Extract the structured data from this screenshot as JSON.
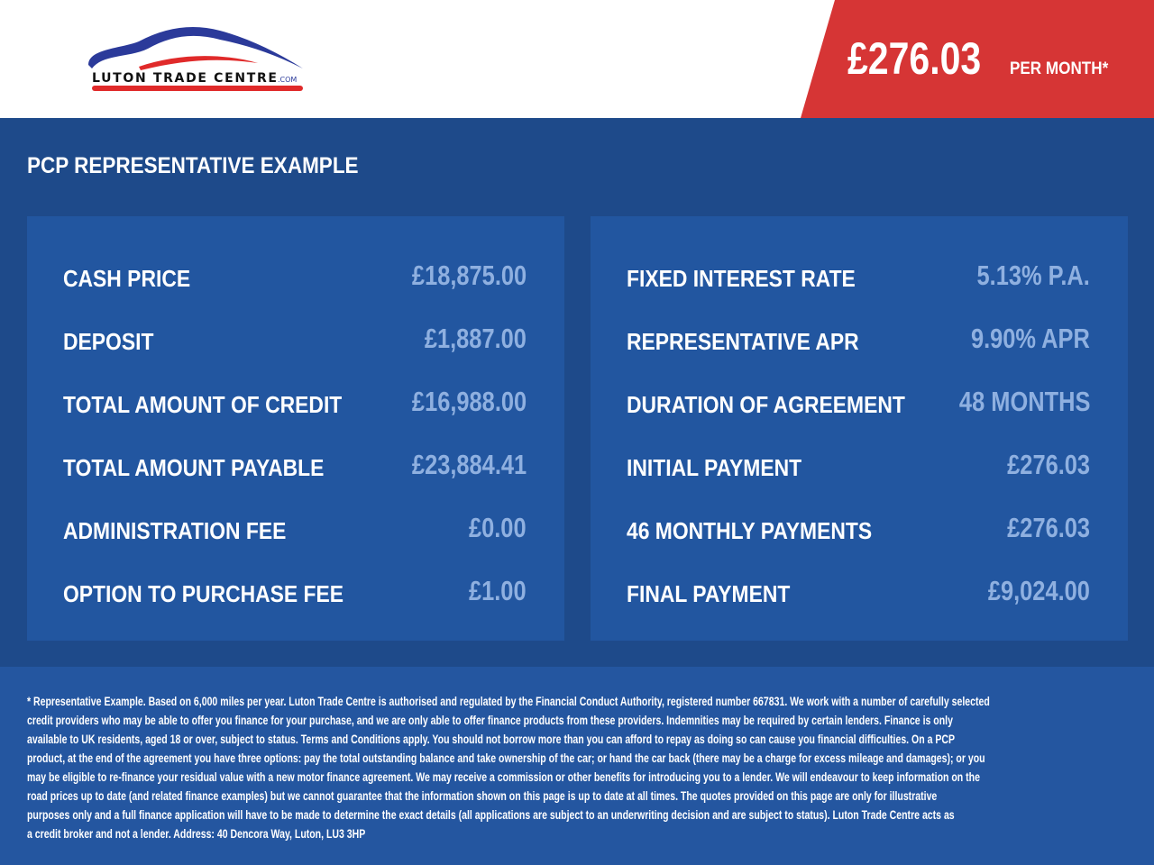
{
  "brand": {
    "logo_text": "LUTON TRADE CENTRE.COM",
    "colors": {
      "blue": "#2b3a9a",
      "red": "#e02a2a"
    }
  },
  "header": {
    "price": "£276.03",
    "per_month": "PER MONTH*"
  },
  "title": "PCP REPRESENTATIVE EXAMPLE",
  "left": [
    {
      "label": "CASH PRICE",
      "value": "£18,875.00"
    },
    {
      "label": "DEPOSIT",
      "value": "£1,887.00"
    },
    {
      "label": "TOTAL AMOUNT OF CREDIT",
      "value": "£16,988.00"
    },
    {
      "label": "TOTAL AMOUNT PAYABLE",
      "value": "£23,884.41"
    },
    {
      "label": "ADMINISTRATION FEE",
      "value": "£0.00"
    },
    {
      "label": "OPTION TO PURCHASE FEE",
      "value": "£1.00"
    }
  ],
  "right": [
    {
      "label": "FIXED INTEREST RATE",
      "value": "5.13% P.A."
    },
    {
      "label": "REPRESENTATIVE APR",
      "value": "9.90% APR"
    },
    {
      "label": "DURATION OF AGREEMENT",
      "value": "48 MONTHS"
    },
    {
      "label": "INITIAL PAYMENT",
      "value": "£276.03"
    },
    {
      "label": "46 MONTHLY PAYMENTS",
      "value": "£276.03"
    },
    {
      "label": "FINAL PAYMENT",
      "value": "£9,024.00"
    }
  ],
  "footer_lines": [
    "* Representative Example. Based on 6,000 miles per year. Luton Trade Centre is authorised and regulated by the Financial Conduct Authority, registered number 667831. We work with a number of carefully selected",
    "credit providers who may be able to offer you finance for your purchase, and we are only able to offer finance products from these providers. Indemnities may be required by certain lenders. Finance is only",
    "available to UK residents, aged 18 or over, subject to status. Terms and Conditions apply. You should not borrow more than you can afford to repay as doing so can cause you financial difficulties. On a PCP",
    "product, at the end of the agreement you have three options: pay the total outstanding balance and take ownership of the car; or hand the car back (there may be a charge for excess mileage and damages); or you",
    "may be eligible to re-finance your residual value with a new motor finance agreement. We may receive a commission or other benefits for introducing you to a lender. We will endeavour to keep information on the",
    "road prices up to date (and related finance examples) but we cannot guarantee that the information shown on this page is up to date at all times. The quotes provided on this page are only for illustrative",
    "purposes only and a full finance application will have to be made to determine the exact details (all applications are subject to an underwriting decision and are subject to status). Luton Trade Centre acts as",
    "a credit broker and not a lender. Address: 40 Dencora Way, Luton, LU3 3HP"
  ]
}
